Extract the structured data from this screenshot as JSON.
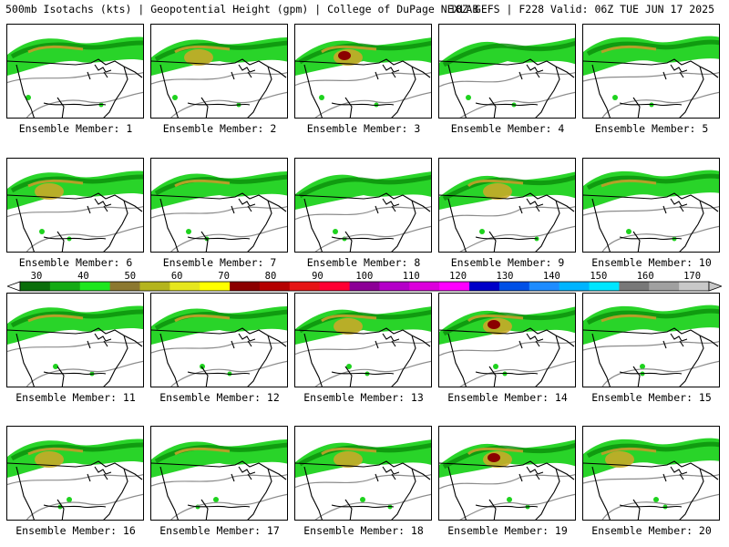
{
  "title": {
    "left": "500mb Isotachs (kts) | Geopotential Height (gpm) | College of DuPage NEXLAB",
    "right": "18Z GEFS | F228 Valid: 06Z TUE JUN 17 2025"
  },
  "colorbar": {
    "ticks": [
      "30",
      "40",
      "50",
      "60",
      "70",
      "80",
      "90",
      "100",
      "110",
      "120",
      "130",
      "140",
      "150",
      "160",
      "170"
    ],
    "colors": [
      "#0a6e0a",
      "#14aa14",
      "#1ee61e",
      "#8c7830",
      "#b4b41e",
      "#e6e61e",
      "#ffff00",
      "#8b0000",
      "#b40000",
      "#e61414",
      "#ff0033",
      "#8c0096",
      "#b400c8",
      "#dc00dc",
      "#ff00ff",
      "#0000c8",
      "#0050e6",
      "#1e8cff",
      "#00b4ff",
      "#00e6ff",
      "#787878",
      "#a0a0a0",
      "#c8c8c8"
    ]
  },
  "panels": [
    {
      "label": "Ensemble Member: 1",
      "intensity": 1
    },
    {
      "label": "Ensemble Member: 2",
      "intensity": 2
    },
    {
      "label": "Ensemble Member: 3",
      "intensity": 3
    },
    {
      "label": "Ensemble Member: 4",
      "intensity": 0
    },
    {
      "label": "Ensemble Member: 5",
      "intensity": 1
    },
    {
      "label": "Ensemble Member: 6",
      "intensity": 2
    },
    {
      "label": "Ensemble Member: 7",
      "intensity": 1
    },
    {
      "label": "Ensemble Member: 8",
      "intensity": 0
    },
    {
      "label": "Ensemble Member: 9",
      "intensity": 2
    },
    {
      "label": "Ensemble Member: 10",
      "intensity": 1
    },
    {
      "label": "Ensemble Member: 11",
      "intensity": 1
    },
    {
      "label": "Ensemble Member: 12",
      "intensity": 1
    },
    {
      "label": "Ensemble Member: 13",
      "intensity": 2
    },
    {
      "label": "Ensemble Member: 14",
      "intensity": 3
    },
    {
      "label": "Ensemble Member: 15",
      "intensity": 1
    },
    {
      "label": "Ensemble Member: 16",
      "intensity": 2
    },
    {
      "label": "Ensemble Member: 17",
      "intensity": 1
    },
    {
      "label": "Ensemble Member: 18",
      "intensity": 2
    },
    {
      "label": "Ensemble Member: 19",
      "intensity": 3
    },
    {
      "label": "Ensemble Member: 20",
      "intensity": 2
    }
  ]
}
